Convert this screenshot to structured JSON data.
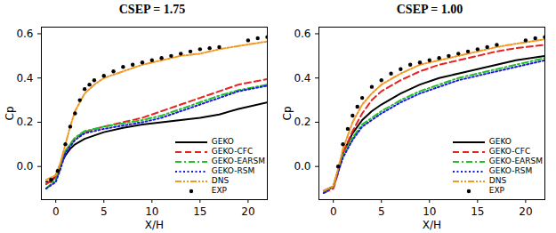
{
  "chart_data": [
    {
      "type": "line",
      "title": "CSEP = 1.75",
      "x_label": "X/H",
      "y_label": "Cp",
      "xlim": [
        -1.5,
        22
      ],
      "ylim": [
        -0.15,
        0.63
      ],
      "xticks": [
        0,
        5,
        10,
        15,
        20
      ],
      "yticks": [
        0,
        0.2,
        0.4,
        0.6
      ],
      "grid": false,
      "legend": "lower right",
      "series": [
        {
          "name": "GEKO",
          "color": "#000000",
          "line_style": "solid",
          "x": [
            -1,
            -0.5,
            0,
            0.5,
            1,
            1.5,
            2,
            3,
            4,
            5,
            7,
            9,
            11,
            13,
            15,
            17,
            19,
            22
          ],
          "values": [
            -0.07,
            -0.07,
            -0.04,
            0.01,
            0.05,
            0.08,
            0.1,
            0.125,
            0.14,
            0.155,
            0.175,
            0.19,
            0.2,
            0.21,
            0.22,
            0.235,
            0.26,
            0.29
          ]
        },
        {
          "name": "GEKO-CFC",
          "color": "#e8221e",
          "line_style": "dashed",
          "x": [
            -1,
            0,
            0.5,
            1,
            2,
            3,
            5,
            7,
            9,
            11,
            13,
            15,
            17,
            19,
            22
          ],
          "values": [
            -0.08,
            -0.05,
            0.01,
            0.07,
            0.13,
            0.155,
            0.18,
            0.2,
            0.22,
            0.25,
            0.28,
            0.31,
            0.34,
            0.37,
            0.395
          ]
        },
        {
          "name": "GEKO-EARSM",
          "color": "#22c022",
          "line_style": "dashdot",
          "x": [
            -1,
            0,
            0.5,
            1,
            2,
            3,
            5,
            7,
            9,
            11,
            13,
            15,
            17,
            19,
            22
          ],
          "values": [
            -0.1,
            -0.06,
            0.0,
            0.07,
            0.13,
            0.16,
            0.18,
            0.195,
            0.21,
            0.23,
            0.26,
            0.29,
            0.32,
            0.345,
            0.37
          ]
        },
        {
          "name": "GEKO-RSM",
          "color": "#1a1adc",
          "line_style": "dotted",
          "x": [
            -1,
            0,
            0.5,
            1,
            2,
            3,
            5,
            7,
            9,
            11,
            13,
            15,
            17,
            19,
            22
          ],
          "values": [
            -0.1,
            -0.07,
            -0.01,
            0.06,
            0.12,
            0.15,
            0.17,
            0.185,
            0.2,
            0.22,
            0.25,
            0.28,
            0.31,
            0.34,
            0.365
          ]
        },
        {
          "name": "DNS",
          "color": "#f5961e",
          "line_style": "dashdotdot",
          "x": [
            -1,
            0,
            0.5,
            1,
            1.5,
            2,
            3,
            4,
            5,
            7,
            9,
            11,
            13,
            15,
            17,
            19,
            22
          ],
          "values": [
            -0.06,
            -0.04,
            0.02,
            0.1,
            0.18,
            0.25,
            0.33,
            0.37,
            0.4,
            0.43,
            0.46,
            0.48,
            0.5,
            0.51,
            0.53,
            0.545,
            0.565
          ]
        },
        {
          "name": "EXP",
          "color": "#000000",
          "line_style": "none",
          "marker": "circle",
          "x": [
            -0.5,
            0.2,
            1,
            1.5,
            2,
            2.5,
            3,
            3.5,
            4,
            5,
            6,
            7,
            8,
            9,
            10,
            11,
            12,
            13,
            14,
            15,
            16,
            17,
            20,
            21,
            22
          ],
          "values": [
            -0.06,
            -0.02,
            0.1,
            0.18,
            0.24,
            0.3,
            0.35,
            0.37,
            0.39,
            0.41,
            0.43,
            0.45,
            0.46,
            0.47,
            0.48,
            0.49,
            0.5,
            0.51,
            0.52,
            0.53,
            0.535,
            0.54,
            0.57,
            0.58,
            0.585
          ]
        }
      ]
    },
    {
      "type": "line",
      "title": "CSEP = 1.00",
      "x_label": "X/H",
      "y_label": "Cp",
      "xlim": [
        -1.5,
        22
      ],
      "ylim": [
        -0.15,
        0.63
      ],
      "xticks": [
        0,
        5,
        10,
        15,
        20
      ],
      "yticks": [
        0,
        0.2,
        0.4,
        0.6
      ],
      "grid": false,
      "legend": "lower right",
      "series": [
        {
          "name": "GEKO",
          "color": "#000000",
          "line_style": "solid",
          "x": [
            -1,
            0,
            0.5,
            1,
            2,
            3,
            4,
            5,
            7,
            9,
            11,
            13,
            15,
            17,
            19,
            22
          ],
          "values": [
            -0.11,
            -0.09,
            -0.02,
            0.06,
            0.15,
            0.21,
            0.25,
            0.28,
            0.33,
            0.37,
            0.4,
            0.42,
            0.44,
            0.46,
            0.48,
            0.5
          ]
        },
        {
          "name": "GEKO-CFC",
          "color": "#e8221e",
          "line_style": "dashed",
          "x": [
            -1,
            0,
            0.5,
            1,
            2,
            3,
            4,
            5,
            7,
            9,
            11,
            13,
            15,
            17,
            19,
            22
          ],
          "values": [
            -0.12,
            -0.1,
            -0.03,
            0.06,
            0.16,
            0.24,
            0.3,
            0.34,
            0.39,
            0.43,
            0.46,
            0.48,
            0.5,
            0.52,
            0.535,
            0.55
          ]
        },
        {
          "name": "GEKO-EARSM",
          "color": "#22c022",
          "line_style": "dashdot",
          "x": [
            -1,
            0,
            1,
            2,
            3,
            5,
            7,
            9,
            11,
            13,
            15,
            17,
            19,
            22
          ],
          "values": [
            -0.12,
            -0.09,
            0.05,
            0.13,
            0.19,
            0.25,
            0.3,
            0.34,
            0.37,
            0.4,
            0.42,
            0.44,
            0.46,
            0.49
          ]
        },
        {
          "name": "GEKO-RSM",
          "color": "#1a1adc",
          "line_style": "dotted",
          "x": [
            -1,
            0,
            1,
            2,
            3,
            5,
            7,
            9,
            11,
            13,
            15,
            17,
            19,
            22
          ],
          "values": [
            -0.12,
            -0.09,
            0.04,
            0.12,
            0.18,
            0.24,
            0.29,
            0.33,
            0.36,
            0.39,
            0.41,
            0.43,
            0.45,
            0.48
          ]
        },
        {
          "name": "DNS",
          "color": "#f5961e",
          "line_style": "dashdotdot",
          "x": [
            -1,
            0,
            0.5,
            1,
            2,
            3,
            4,
            5,
            7,
            9,
            11,
            13,
            15,
            17,
            19,
            22
          ],
          "values": [
            -0.11,
            -0.09,
            -0.01,
            0.08,
            0.2,
            0.28,
            0.33,
            0.37,
            0.42,
            0.46,
            0.48,
            0.5,
            0.52,
            0.54,
            0.555,
            0.575
          ]
        },
        {
          "name": "EXP",
          "color": "#000000",
          "line_style": "none",
          "marker": "circle",
          "x": [
            0.5,
            1,
            1.5,
            2,
            2.5,
            3,
            4,
            5,
            6,
            7,
            8,
            9,
            10,
            11,
            12,
            13,
            14,
            15,
            16,
            17,
            20,
            21,
            22
          ],
          "values": [
            0.0,
            0.1,
            0.17,
            0.23,
            0.27,
            0.31,
            0.36,
            0.39,
            0.42,
            0.44,
            0.46,
            0.47,
            0.48,
            0.49,
            0.5,
            0.51,
            0.52,
            0.53,
            0.54,
            0.55,
            0.57,
            0.58,
            0.585
          ]
        }
      ]
    }
  ]
}
